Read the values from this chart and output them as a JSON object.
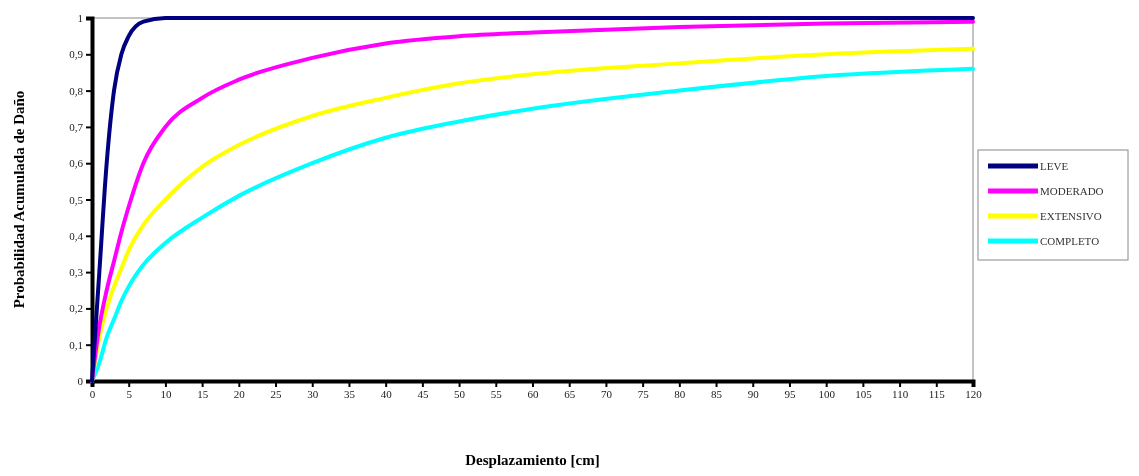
{
  "chart_data": {
    "type": "line",
    "xlabel": "Desplazamiento [cm]",
    "ylabel": "Probabilidad Acumulada de Daño",
    "xlim": [
      0,
      120
    ],
    "ylim": [
      0,
      1
    ],
    "xticks": [
      0,
      5,
      10,
      15,
      20,
      25,
      30,
      35,
      40,
      45,
      50,
      55,
      60,
      65,
      70,
      75,
      80,
      85,
      90,
      95,
      100,
      105,
      110,
      115,
      120
    ],
    "yticks": [
      0,
      {
        "value": 0.1,
        "label": "0,1"
      },
      {
        "value": 0.2,
        "label": "0,2"
      },
      {
        "value": 0.3,
        "label": "0,3"
      },
      {
        "value": 0.4,
        "label": "0,4"
      },
      {
        "value": 0.5,
        "label": "0,5"
      },
      {
        "value": 0.6,
        "label": "0,6"
      },
      {
        "value": 0.7,
        "label": "0,7"
      },
      {
        "value": 0.8,
        "label": "0,8"
      },
      {
        "value": 0.9,
        "label": "0,9"
      },
      1
    ],
    "grid": false,
    "legend": "right",
    "marker": "none",
    "line_style": "solid",
    "x": [
      0,
      1,
      2,
      3,
      4,
      5,
      7,
      10,
      15,
      20,
      30,
      40,
      50,
      60,
      80,
      100,
      120
    ],
    "series": [
      {
        "name": "LEVE",
        "color": "#000080",
        "values": [
          0,
          0.3,
          0.6,
          0.8,
          0.9,
          0.95,
          0.99,
          1,
          1,
          1,
          1,
          1,
          1,
          1,
          1,
          1,
          1
        ]
      },
      {
        "name": "MODERADO",
        "color": "#ff00ff",
        "values": [
          0,
          0.15,
          0.25,
          0.33,
          0.41,
          0.48,
          0.6,
          0.7,
          0.78,
          0.83,
          0.89,
          0.93,
          0.95,
          0.96,
          0.975,
          0.985,
          0.99
        ]
      },
      {
        "name": "EXTENSIVO",
        "color": "#ffff00",
        "values": [
          0,
          0.12,
          0.2,
          0.26,
          0.31,
          0.36,
          0.43,
          0.5,
          0.59,
          0.65,
          0.73,
          0.78,
          0.82,
          0.845,
          0.875,
          0.9,
          0.915
        ]
      },
      {
        "name": "COMPLETO",
        "color": "#00ffff",
        "values": [
          0,
          0.05,
          0.12,
          0.17,
          0.22,
          0.26,
          0.32,
          0.38,
          0.45,
          0.51,
          0.6,
          0.67,
          0.715,
          0.75,
          0.8,
          0.84,
          0.86
        ]
      }
    ]
  }
}
